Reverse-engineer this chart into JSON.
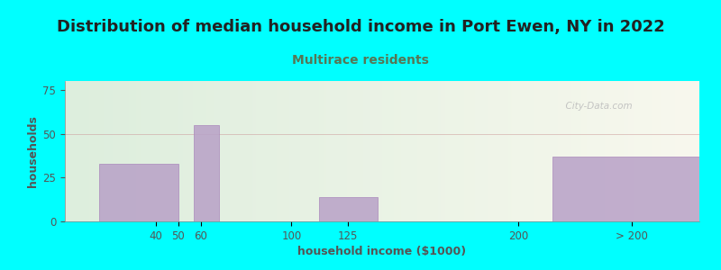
{
  "title": "Distribution of median household income in Port Ewen, NY in 2022",
  "subtitle": "Multirace residents",
  "xlabel": "household income ($1000)",
  "ylabel": "households",
  "bg_outer": "#00FFFF",
  "bg_inner_left": "#ddeedd",
  "bg_inner_right": "#f8f8ee",
  "bar_color": "#bbaacccc",
  "bar_edge_color": "#aa88bb",
  "ylim": [
    0,
    80
  ],
  "yticks": [
    0,
    25,
    50,
    75
  ],
  "title_fontsize": 13,
  "subtitle_fontsize": 10,
  "axis_label_fontsize": 9,
  "tick_fontsize": 8.5,
  "watermark_text": "  City-Data.com"
}
